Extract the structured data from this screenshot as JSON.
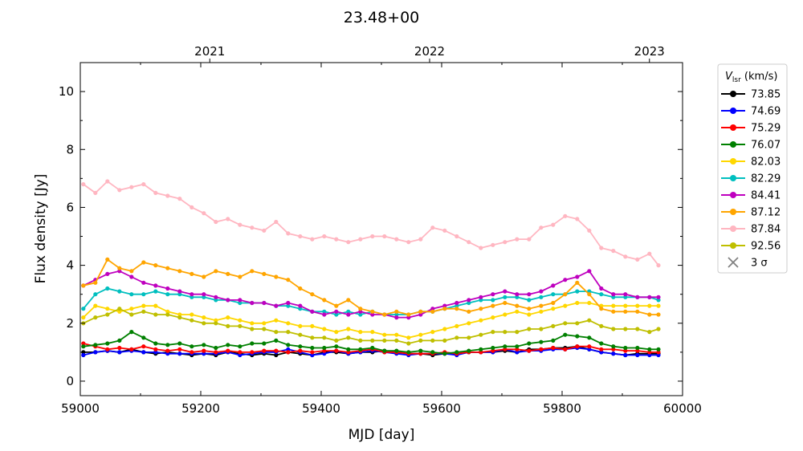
{
  "chart_data": {
    "type": "line",
    "title": "23.48+00",
    "xlabel": "MJD [day]",
    "ylabel": "Flux density [Jy]",
    "xlim": [
      59000,
      60000
    ],
    "ylim": [
      -0.5,
      11
    ],
    "xticks": [
      59000,
      59200,
      59400,
      59600,
      59800,
      60000
    ],
    "yticks": [
      0,
      2,
      4,
      6,
      8,
      10
    ],
    "top_axis": {
      "ticks": [
        {
          "label": "2021",
          "mjd": 59215
        },
        {
          "label": "2022",
          "mjd": 59580
        },
        {
          "label": "2023",
          "mjd": 59945
        }
      ]
    },
    "grid": false,
    "legend": {
      "placement": "outside-right",
      "title": "V_lsr (km/s)",
      "title_main": "V",
      "title_sub": "lsr",
      "title_unit": " (km/s)",
      "noise_label": "3 σ"
    },
    "x": [
      59005,
      59025,
      59045,
      59065,
      59085,
      59105,
      59125,
      59145,
      59165,
      59185,
      59205,
      59225,
      59245,
      59265,
      59285,
      59305,
      59325,
      59345,
      59365,
      59385,
      59405,
      59425,
      59445,
      59465,
      59485,
      59505,
      59525,
      59545,
      59565,
      59585,
      59605,
      59625,
      59645,
      59665,
      59685,
      59705,
      59725,
      59745,
      59765,
      59785,
      59805,
      59825,
      59845,
      59865,
      59885,
      59905,
      59925,
      59945,
      59960
    ],
    "series": [
      {
        "name": "73.85",
        "color": "#000000",
        "values": [
          1.0,
          1.0,
          1.05,
          1.0,
          1.1,
          1.0,
          0.95,
          1.0,
          0.95,
          0.9,
          0.95,
          0.9,
          1.0,
          0.95,
          0.9,
          0.95,
          0.9,
          1.0,
          0.95,
          0.9,
          1.0,
          1.0,
          0.95,
          1.0,
          1.0,
          1.05,
          1.0,
          0.95,
          0.95,
          0.9,
          0.95,
          0.95,
          1.0,
          1.0,
          1.0,
          1.05,
          1.0,
          1.1,
          1.1,
          1.15,
          1.15,
          1.2,
          1.1,
          1.0,
          0.95,
          0.9,
          0.95,
          0.95,
          0.95
        ]
      },
      {
        "name": "74.69",
        "color": "#0000ff",
        "values": [
          0.9,
          1.0,
          1.05,
          1.0,
          1.05,
          1.0,
          1.0,
          0.95,
          0.95,
          0.95,
          0.95,
          0.95,
          1.0,
          0.9,
          0.95,
          1.0,
          1.0,
          1.1,
          1.0,
          0.9,
          0.95,
          1.05,
          0.95,
          1.0,
          1.05,
          1.0,
          0.95,
          0.9,
          0.95,
          0.95,
          0.95,
          0.9,
          1.0,
          1.0,
          1.0,
          1.1,
          1.0,
          1.05,
          1.05,
          1.1,
          1.1,
          1.15,
          1.1,
          1.0,
          0.95,
          0.9,
          0.9,
          0.9,
          0.9
        ]
      },
      {
        "name": "75.29",
        "color": "#ff0000",
        "values": [
          1.3,
          1.2,
          1.1,
          1.15,
          1.1,
          1.2,
          1.1,
          1.05,
          1.1,
          1.0,
          1.05,
          1.0,
          1.05,
          1.0,
          1.0,
          1.05,
          1.05,
          1.0,
          1.05,
          1.0,
          1.05,
          1.05,
          1.0,
          1.05,
          1.1,
          1.0,
          1.0,
          0.95,
          0.95,
          0.95,
          1.0,
          0.95,
          1.0,
          1.0,
          1.05,
          1.1,
          1.1,
          1.05,
          1.1,
          1.15,
          1.1,
          1.2,
          1.2,
          1.1,
          1.1,
          1.05,
          1.05,
          1.0,
          1.0
        ]
      },
      {
        "name": "76.07",
        "color": "#008000",
        "values": [
          1.2,
          1.25,
          1.3,
          1.4,
          1.7,
          1.5,
          1.3,
          1.25,
          1.3,
          1.2,
          1.25,
          1.15,
          1.25,
          1.2,
          1.3,
          1.3,
          1.4,
          1.25,
          1.2,
          1.15,
          1.15,
          1.2,
          1.1,
          1.1,
          1.15,
          1.05,
          1.05,
          1.0,
          1.05,
          1.0,
          0.95,
          1.0,
          1.05,
          1.1,
          1.15,
          1.2,
          1.2,
          1.3,
          1.35,
          1.4,
          1.6,
          1.55,
          1.5,
          1.3,
          1.2,
          1.15,
          1.15,
          1.1,
          1.1
        ]
      },
      {
        "name": "82.03",
        "color": "#ffd700",
        "values": [
          2.2,
          2.6,
          2.5,
          2.4,
          2.5,
          2.6,
          2.6,
          2.4,
          2.3,
          2.3,
          2.2,
          2.1,
          2.2,
          2.1,
          2.0,
          2.0,
          2.1,
          2.0,
          1.9,
          1.9,
          1.8,
          1.7,
          1.8,
          1.7,
          1.7,
          1.6,
          1.6,
          1.5,
          1.6,
          1.7,
          1.8,
          1.9,
          2.0,
          2.1,
          2.2,
          2.3,
          2.4,
          2.3,
          2.4,
          2.5,
          2.6,
          2.7,
          2.7,
          2.6,
          2.6,
          2.6,
          2.6,
          2.6,
          2.6
        ]
      },
      {
        "name": "82.29",
        "color": "#00bfbf",
        "values": [
          2.5,
          3.0,
          3.2,
          3.1,
          3.0,
          3.0,
          3.1,
          3.0,
          3.0,
          2.9,
          2.9,
          2.8,
          2.8,
          2.7,
          2.7,
          2.7,
          2.6,
          2.6,
          2.5,
          2.4,
          2.4,
          2.3,
          2.4,
          2.3,
          2.4,
          2.3,
          2.3,
          2.3,
          2.4,
          2.4,
          2.5,
          2.6,
          2.7,
          2.8,
          2.8,
          2.9,
          2.9,
          2.8,
          2.9,
          3.0,
          3.0,
          3.1,
          3.1,
          3.0,
          2.9,
          2.9,
          2.9,
          2.9,
          2.8
        ]
      },
      {
        "name": "84.41",
        "color": "#bf00bf",
        "values": [
          3.3,
          3.5,
          3.7,
          3.8,
          3.6,
          3.4,
          3.3,
          3.2,
          3.1,
          3.0,
          3.0,
          2.9,
          2.8,
          2.8,
          2.7,
          2.7,
          2.6,
          2.7,
          2.6,
          2.4,
          2.3,
          2.4,
          2.3,
          2.4,
          2.3,
          2.3,
          2.2,
          2.2,
          2.3,
          2.5,
          2.6,
          2.7,
          2.8,
          2.9,
          3.0,
          3.1,
          3.0,
          3.0,
          3.1,
          3.3,
          3.5,
          3.6,
          3.8,
          3.2,
          3.0,
          3.0,
          2.9,
          2.9,
          2.9
        ]
      },
      {
        "name": "87.12",
        "color": "#ffa500",
        "values": [
          3.3,
          3.4,
          4.2,
          3.9,
          3.8,
          4.1,
          4.0,
          3.9,
          3.8,
          3.7,
          3.6,
          3.8,
          3.7,
          3.6,
          3.8,
          3.7,
          3.6,
          3.5,
          3.2,
          3.0,
          2.8,
          2.6,
          2.8,
          2.5,
          2.4,
          2.3,
          2.4,
          2.3,
          2.4,
          2.4,
          2.5,
          2.5,
          2.4,
          2.5,
          2.6,
          2.7,
          2.6,
          2.5,
          2.6,
          2.7,
          3.0,
          3.4,
          3.0,
          2.5,
          2.4,
          2.4,
          2.4,
          2.3,
          2.3
        ]
      },
      {
        "name": "87.84",
        "color": "#ffb6c1",
        "values": [
          6.8,
          6.5,
          6.9,
          6.6,
          6.7,
          6.8,
          6.5,
          6.4,
          6.3,
          6.0,
          5.8,
          5.5,
          5.6,
          5.4,
          5.3,
          5.2,
          5.5,
          5.1,
          5.0,
          4.9,
          5.0,
          4.9,
          4.8,
          4.9,
          5.0,
          5.0,
          4.9,
          4.8,
          4.9,
          5.3,
          5.2,
          5.0,
          4.8,
          4.6,
          4.7,
          4.8,
          4.9,
          4.9,
          5.3,
          5.4,
          5.7,
          5.6,
          5.2,
          4.6,
          4.5,
          4.3,
          4.2,
          4.4,
          4.0
        ]
      },
      {
        "name": "92.56",
        "color": "#bfbf00",
        "values": [
          2.0,
          2.2,
          2.3,
          2.5,
          2.3,
          2.4,
          2.3,
          2.3,
          2.2,
          2.1,
          2.0,
          2.0,
          1.9,
          1.9,
          1.8,
          1.8,
          1.7,
          1.7,
          1.6,
          1.5,
          1.5,
          1.4,
          1.5,
          1.4,
          1.4,
          1.4,
          1.4,
          1.3,
          1.4,
          1.4,
          1.4,
          1.5,
          1.5,
          1.6,
          1.7,
          1.7,
          1.7,
          1.8,
          1.8,
          1.9,
          2.0,
          2.0,
          2.1,
          1.9,
          1.8,
          1.8,
          1.8,
          1.7,
          1.8
        ]
      }
    ]
  }
}
